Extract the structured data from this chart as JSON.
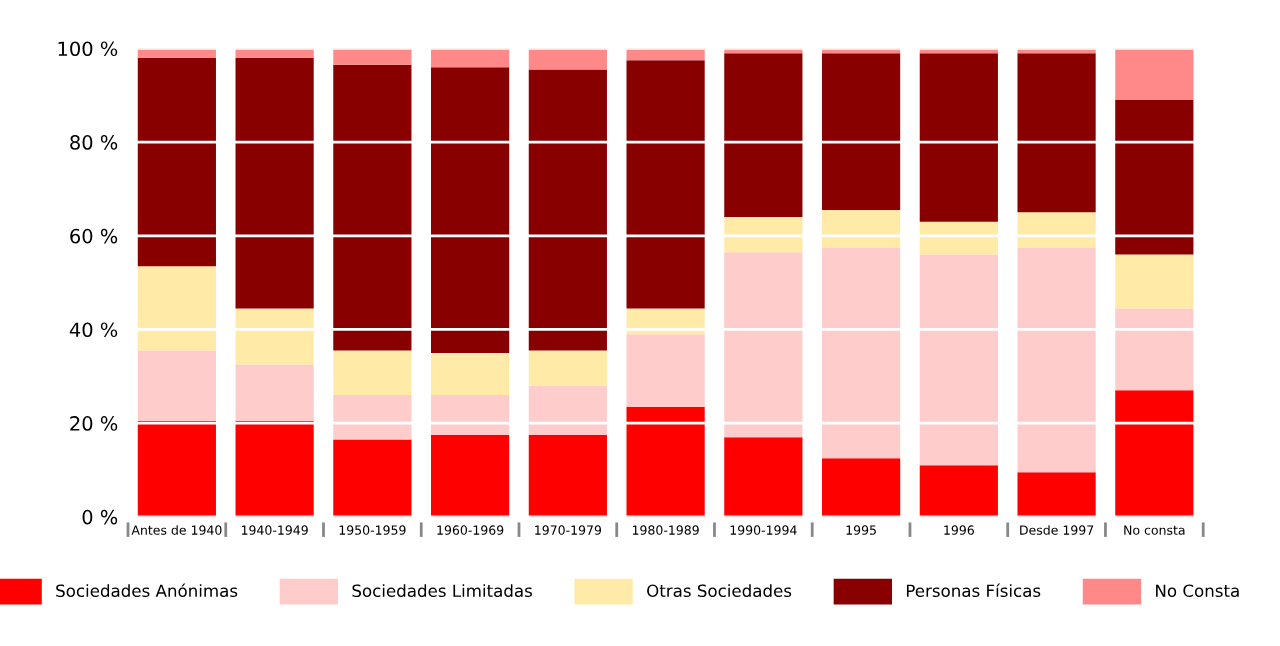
{
  "chart_data": {
    "type": "bar",
    "stacked": true,
    "categories": [
      "Antes de 1940",
      "1940-1949",
      "1950-1959",
      "1960-1969",
      "1970-1979",
      "1980-1989",
      "1990-1994",
      "1995",
      "1996",
      "Desde 1997",
      "No consta"
    ],
    "series": [
      {
        "name": "Sociedades Anónimas",
        "color": "#ff0000",
        "values": [
          20.5,
          20.5,
          16.5,
          17.5,
          17.5,
          23.5,
          17,
          12.5,
          11,
          9.5,
          27
        ]
      },
      {
        "name": "Sociedades Limitadas",
        "color": "#ffcccc",
        "values": [
          15,
          12,
          9.5,
          8.5,
          10.5,
          15.5,
          39.5,
          45,
          45,
          48,
          17.5
        ]
      },
      {
        "name": "Otras Sociedades",
        "color": "#ffeaa8",
        "values": [
          18,
          12,
          9.5,
          9,
          7.5,
          5.5,
          7.5,
          8,
          7,
          7.5,
          11.5
        ]
      },
      {
        "name": "Personas Físicas",
        "color": "#880000",
        "values": [
          44.5,
          53.5,
          61,
          61,
          60,
          53,
          35,
          33.5,
          36,
          34,
          33
        ]
      },
      {
        "name": "No Consta",
        "color": "#ff8888",
        "values": [
          2,
          2,
          3.5,
          4,
          4.5,
          2.5,
          1,
          1,
          1,
          1,
          11
        ]
      }
    ],
    "ylim": [
      0,
      100
    ],
    "yticks": [
      {
        "value": 0,
        "label": "0 %"
      },
      {
        "value": 20,
        "label": "20 %"
      },
      {
        "value": 40,
        "label": "40 %"
      },
      {
        "value": 60,
        "label": "60 %"
      },
      {
        "value": 80,
        "label": "80 %"
      },
      {
        "value": 100,
        "label": "100 %"
      }
    ],
    "grid": "y",
    "legend": "bottom"
  }
}
